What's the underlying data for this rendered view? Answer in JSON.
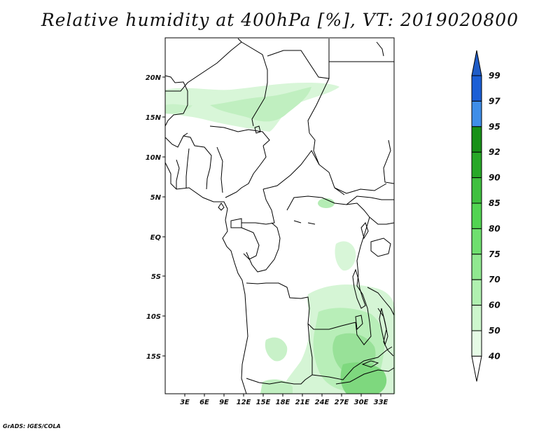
{
  "title": "Relative humidity at 400hPa [%], VT: 2019020800",
  "credit": "GrADS: IGES/COLA",
  "map": {
    "lon_range": [
      0,
      35
    ],
    "lat_range": [
      -20,
      25
    ],
    "x_ticks": [
      "3E",
      "6E",
      "9E",
      "12E",
      "15E",
      "18E",
      "21E",
      "24E",
      "27E",
      "30E",
      "33E"
    ],
    "y_ticks": [
      "20N",
      "15N",
      "10N",
      "5N",
      "EQ",
      "5S",
      "10S",
      "15S"
    ]
  },
  "colorbar": {
    "levels": [
      "99",
      "97",
      "95",
      "92",
      "90",
      "85",
      "80",
      "75",
      "70",
      "60",
      "50",
      "40"
    ],
    "colors": [
      "#1c5fd6",
      "#3f8ee8",
      "#179117",
      "#27a827",
      "#3fc03f",
      "#52d452",
      "#6fdf6f",
      "#90e890",
      "#b0f0b0",
      "#cdf7cd",
      "#e6fbe6"
    ],
    "cap_top_color": "#1f5cc7",
    "cap_bottom_color": "#ffffff"
  },
  "colors": {
    "light": "#d2f5d2",
    "medium": "#b4ecb4",
    "dark": "#96e096"
  }
}
